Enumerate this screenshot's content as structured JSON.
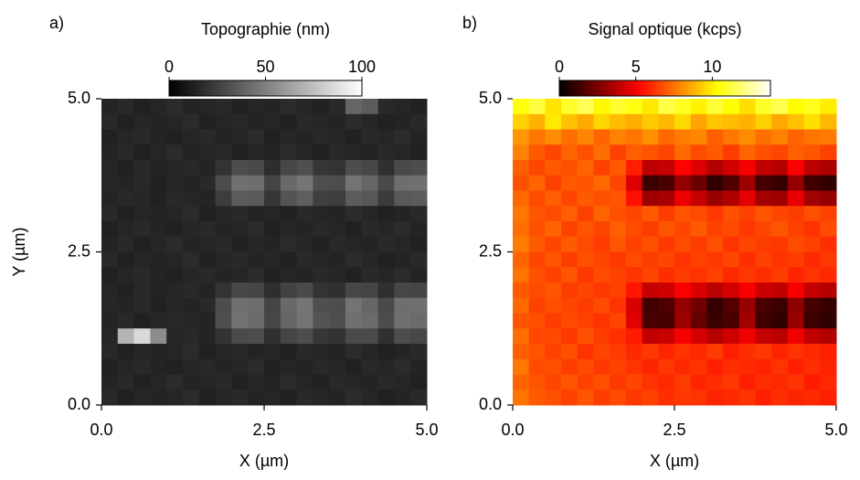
{
  "chart_data": [
    {
      "type": "heatmap",
      "panel_label": "a)",
      "title": "Topographie (nm)",
      "xlabel": "X (µm)",
      "ylabel": "Y (µm)",
      "xlim": [
        0,
        5
      ],
      "xticks": [
        {
          "value": 0,
          "label": "0.0"
        },
        {
          "value": 2.5,
          "label": "2.5"
        },
        {
          "value": 5,
          "label": "5.0"
        }
      ],
      "ylim": [
        0,
        5
      ],
      "yticks": [
        {
          "value": 0,
          "label": "0.0"
        },
        {
          "value": 2.5,
          "label": "2.5"
        },
        {
          "value": 5,
          "label": "5.0"
        }
      ],
      "colormap": "gray",
      "clim": [
        0,
        100
      ],
      "cticks": [
        0,
        50,
        100
      ],
      "z": [
        [
          14,
          16,
          13,
          15,
          17,
          14,
          15,
          16,
          13,
          15,
          14,
          17,
          15,
          13,
          16,
          40,
          36,
          16,
          15,
          13
        ],
        [
          16,
          13,
          15,
          14,
          15,
          17,
          13,
          15,
          16,
          14,
          15,
          13,
          16,
          15,
          14,
          17,
          15,
          13,
          14,
          16
        ],
        [
          13,
          15,
          16,
          14,
          13,
          15,
          16,
          14,
          15,
          17,
          13,
          15,
          14,
          16,
          15,
          13,
          16,
          15,
          17,
          14
        ],
        [
          14,
          16,
          13,
          15,
          17,
          14,
          15,
          16,
          13,
          15,
          14,
          17,
          15,
          13,
          16,
          15,
          14,
          16,
          15,
          13
        ],
        [
          15,
          13,
          16,
          14,
          15,
          16,
          14,
          20,
          30,
          29,
          18,
          28,
          31,
          21,
          20,
          30,
          28,
          19,
          29,
          30
        ],
        [
          15,
          14,
          16,
          13,
          15,
          14,
          16,
          30,
          44,
          43,
          27,
          41,
          46,
          31,
          30,
          45,
          40,
          29,
          43,
          44
        ],
        [
          14,
          16,
          15,
          13,
          16,
          15,
          14,
          24,
          36,
          35,
          21,
          33,
          37,
          25,
          24,
          36,
          34,
          23,
          35,
          36
        ],
        [
          16,
          13,
          15,
          14,
          15,
          17,
          13,
          15,
          16,
          14,
          15,
          13,
          16,
          15,
          14,
          17,
          15,
          13,
          14,
          16
        ],
        [
          13,
          15,
          16,
          14,
          13,
          15,
          16,
          14,
          15,
          17,
          13,
          15,
          14,
          16,
          15,
          13,
          16,
          15,
          17,
          14
        ],
        [
          14,
          16,
          13,
          15,
          17,
          14,
          15,
          16,
          13,
          15,
          14,
          17,
          15,
          13,
          16,
          15,
          14,
          16,
          15,
          13
        ],
        [
          16,
          13,
          15,
          14,
          15,
          17,
          13,
          15,
          16,
          14,
          15,
          13,
          16,
          15,
          14,
          17,
          15,
          13,
          14,
          16
        ],
        [
          13,
          15,
          16,
          14,
          13,
          15,
          16,
          14,
          15,
          17,
          13,
          15,
          14,
          16,
          15,
          13,
          16,
          15,
          17,
          14
        ],
        [
          15,
          13,
          16,
          14,
          15,
          16,
          14,
          20,
          28,
          27,
          18,
          26,
          29,
          20,
          19,
          28,
          27,
          19,
          28,
          27
        ],
        [
          15,
          14,
          16,
          13,
          15,
          14,
          16,
          30,
          44,
          43,
          27,
          41,
          46,
          31,
          30,
          45,
          40,
          29,
          43,
          44
        ],
        [
          14,
          16,
          13,
          15,
          16,
          15,
          14,
          31,
          45,
          42,
          28,
          40,
          45,
          33,
          31,
          44,
          42,
          30,
          44,
          42
        ],
        [
          15,
          70,
          85,
          55,
          15,
          16,
          14,
          20,
          29,
          30,
          19,
          27,
          30,
          21,
          20,
          29,
          29,
          19,
          30,
          28
        ],
        [
          16,
          13,
          15,
          14,
          15,
          17,
          13,
          15,
          16,
          14,
          15,
          13,
          16,
          15,
          14,
          17,
          15,
          13,
          14,
          16
        ],
        [
          13,
          15,
          16,
          14,
          13,
          15,
          16,
          14,
          15,
          17,
          13,
          15,
          14,
          16,
          15,
          13,
          16,
          15,
          17,
          14
        ],
        [
          14,
          16,
          13,
          15,
          17,
          14,
          15,
          16,
          13,
          15,
          14,
          17,
          15,
          13,
          16,
          15,
          14,
          16,
          15,
          13
        ],
        [
          16,
          13,
          15,
          14,
          15,
          17,
          13,
          15,
          16,
          14,
          15,
          13,
          16,
          15,
          14,
          17,
          15,
          13,
          14,
          16
        ]
      ]
    },
    {
      "type": "heatmap",
      "panel_label": "b)",
      "title": "Signal optique (kcps)",
      "xlabel": "X (µm)",
      "xlim": [
        0,
        5
      ],
      "xticks": [
        {
          "value": 0,
          "label": "0.0"
        },
        {
          "value": 2.5,
          "label": "2.5"
        },
        {
          "value": 5,
          "label": "5.0"
        }
      ],
      "ylim": [
        0,
        5
      ],
      "yticks": [
        {
          "value": 0,
          "label": "0.0"
        },
        {
          "value": 2.5,
          "label": "2.5"
        },
        {
          "value": 5,
          "label": "5.0"
        }
      ],
      "colormap": "hot",
      "clim": [
        0,
        13.8
      ],
      "cticks": [
        0,
        5,
        10
      ],
      "z": [
        [
          10.5,
          11.2,
          9.8,
          10.9,
          11.5,
          10.2,
          11.0,
          10.6,
          9.9,
          11.3,
          10.8,
          10.1,
          11.1,
          10.4,
          9.7,
          10.9,
          11.4,
          10.3,
          10.7,
          10.0
        ],
        [
          9.4,
          8.8,
          9.9,
          9.1,
          8.6,
          9.5,
          9.0,
          8.7,
          9.3,
          8.9,
          9.6,
          8.5,
          9.2,
          9.0,
          8.8,
          9.4,
          8.6,
          9.1,
          9.7,
          8.9
        ],
        [
          8.2,
          7.6,
          8.0,
          7.4,
          7.9,
          7.2,
          7.8,
          7.5,
          8.1,
          7.3,
          7.7,
          7.9,
          7.1,
          7.6,
          8.0,
          7.4,
          7.8,
          7.2,
          7.5,
          7.7
        ],
        [
          7.8,
          7.0,
          6.6,
          7.2,
          6.8,
          7.4,
          6.5,
          7.1,
          6.9,
          6.6,
          7.3,
          6.7,
          7.0,
          6.4,
          7.2,
          6.8,
          6.6,
          7.1,
          6.9,
          6.5
        ],
        [
          7.1,
          6.6,
          7.0,
          6.8,
          7.2,
          6.5,
          7.0,
          5.8,
          3.8,
          4.0,
          5.2,
          4.5,
          3.6,
          4.2,
          5.0,
          3.9,
          3.7,
          5.1,
          3.8,
          3.5
        ],
        [
          6.8,
          7.2,
          6.5,
          7.0,
          6.9,
          7.3,
          6.6,
          4.5,
          1.2,
          1.5,
          3.0,
          2.2,
          1.0,
          1.6,
          3.2,
          1.4,
          1.1,
          3.0,
          1.3,
          1.0
        ],
        [
          7.3,
          6.7,
          7.1,
          6.6,
          7.0,
          6.8,
          6.9,
          5.5,
          3.2,
          3.4,
          4.8,
          4.0,
          3.1,
          3.6,
          4.6,
          3.3,
          3.2,
          4.7,
          3.3,
          3.0
        ],
        [
          7.6,
          6.9,
          6.7,
          7.1,
          6.5,
          7.2,
          6.8,
          6.6,
          7.0,
          6.4,
          6.9,
          6.7,
          6.3,
          6.8,
          6.5,
          6.9,
          6.6,
          6.4,
          6.8,
          6.5
        ],
        [
          7.4,
          6.8,
          7.2,
          6.5,
          6.9,
          6.6,
          7.1,
          6.7,
          6.4,
          6.9,
          6.6,
          7.0,
          6.5,
          6.7,
          6.3,
          6.6,
          6.9,
          6.5,
          6.2,
          6.7
        ],
        [
          7.7,
          7.0,
          6.6,
          7.0,
          6.7,
          6.4,
          6.9,
          6.5,
          6.8,
          6.3,
          6.7,
          6.4,
          6.8,
          6.2,
          6.6,
          6.4,
          6.3,
          6.7,
          6.5,
          6.1
        ],
        [
          7.2,
          6.6,
          6.9,
          6.4,
          6.8,
          6.6,
          6.3,
          6.7,
          6.4,
          6.6,
          6.2,
          6.5,
          6.3,
          6.6,
          6.1,
          6.5,
          6.2,
          6.4,
          6.0,
          6.3
        ],
        [
          7.5,
          6.8,
          6.5,
          6.9,
          6.3,
          6.7,
          6.5,
          6.2,
          6.6,
          6.1,
          6.4,
          6.2,
          6.5,
          6.0,
          6.3,
          6.1,
          6.4,
          5.9,
          6.2,
          6.0
        ],
        [
          7.0,
          6.7,
          6.9,
          6.4,
          6.6,
          6.3,
          6.5,
          5.6,
          4.0,
          4.2,
          5.1,
          4.4,
          3.8,
          4.3,
          5.0,
          4.1,
          3.9,
          5.0,
          4.0,
          3.7
        ],
        [
          7.3,
          6.5,
          6.8,
          6.6,
          6.4,
          6.7,
          6.2,
          4.4,
          1.3,
          1.6,
          3.0,
          2.3,
          1.1,
          1.7,
          3.1,
          1.5,
          1.2,
          2.9,
          1.4,
          1.1
        ],
        [
          6.9,
          6.8,
          6.4,
          6.7,
          6.5,
          6.2,
          6.6,
          4.6,
          1.5,
          1.4,
          3.2,
          2.1,
          1.2,
          1.5,
          3.3,
          1.3,
          1.0,
          3.1,
          1.2,
          1.0
        ],
        [
          7.4,
          6.6,
          6.7,
          6.3,
          6.8,
          6.4,
          6.1,
          5.7,
          3.9,
          4.1,
          5.0,
          4.3,
          3.7,
          4.2,
          4.9,
          4.0,
          3.8,
          4.9,
          3.9,
          3.6
        ],
        [
          7.1,
          6.9,
          6.5,
          6.8,
          6.2,
          6.6,
          6.4,
          6.0,
          6.3,
          5.9,
          6.2,
          6.0,
          6.4,
          5.8,
          6.1,
          6.3,
          5.9,
          6.2,
          6.0,
          5.8
        ],
        [
          7.6,
          6.7,
          6.8,
          6.4,
          6.7,
          6.3,
          6.5,
          6.2,
          5.9,
          6.3,
          6.0,
          6.2,
          5.8,
          6.1,
          6.0,
          5.9,
          6.2,
          5.8,
          6.1,
          5.9
        ],
        [
          7.2,
          6.9,
          6.6,
          6.9,
          6.5,
          6.8,
          6.3,
          6.6,
          6.2,
          6.0,
          6.4,
          5.9,
          6.1,
          6.3,
          5.8,
          6.1,
          6.0,
          6.2,
          5.7,
          6.0
        ],
        [
          7.5,
          7.0,
          6.8,
          6.5,
          6.9,
          6.4,
          6.7,
          6.3,
          6.5,
          6.1,
          6.3,
          6.2,
          5.9,
          6.0,
          6.2,
          5.8,
          6.1,
          5.9,
          6.0,
          5.8
        ]
      ]
    }
  ]
}
